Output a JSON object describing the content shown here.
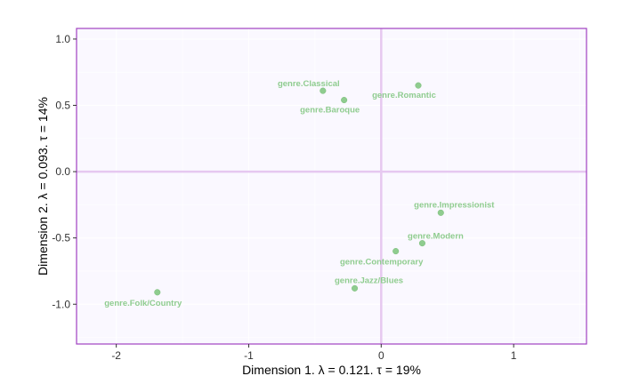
{
  "chart_data": {
    "type": "scatter",
    "title": "",
    "xlabel": "Dimension 1.   λ = 0.121.  τ = 19%",
    "ylabel": "Dimension 2.   λ = 0.093.  τ = 14%",
    "xlim": [
      -2.3,
      1.55
    ],
    "ylim": [
      -1.3,
      1.08
    ],
    "x_ticks": [
      -2,
      -1,
      0,
      1
    ],
    "y_ticks": [
      -1.0,
      -0.5,
      0.0,
      0.5,
      1.0
    ],
    "x_tick_labels": [
      "-2",
      "-1",
      "0",
      "1"
    ],
    "y_tick_labels": [
      "-1.0",
      "-0.5",
      "0.0",
      "0.5",
      "1.0"
    ],
    "grid": true,
    "reference_lines": {
      "x": 0,
      "y": 0
    },
    "colors": {
      "panel_bg": "#faf8ff",
      "panel_border": "#a040c0",
      "grid": "#ffffff",
      "reference_line": "#e6c8f0",
      "point": "#8fcc8f",
      "label": "#8fcc8f"
    },
    "points": [
      {
        "label": "genre.Classical",
        "x": -0.44,
        "y": 0.61
      },
      {
        "label": "genre.Baroque",
        "x": -0.28,
        "y": 0.54
      },
      {
        "label": "genre.Romantic",
        "x": 0.28,
        "y": 0.65
      },
      {
        "label": "genre.Impressionist",
        "x": 0.45,
        "y": -0.31
      },
      {
        "label": "genre.Modern",
        "x": 0.31,
        "y": -0.54
      },
      {
        "label": "genre.Contemporary",
        "x": 0.11,
        "y": -0.6
      },
      {
        "label": "genre.Jazz/Blues",
        "x": -0.2,
        "y": -0.88
      },
      {
        "label": "genre.Folk/Country",
        "x": -1.69,
        "y": -0.91
      }
    ]
  }
}
